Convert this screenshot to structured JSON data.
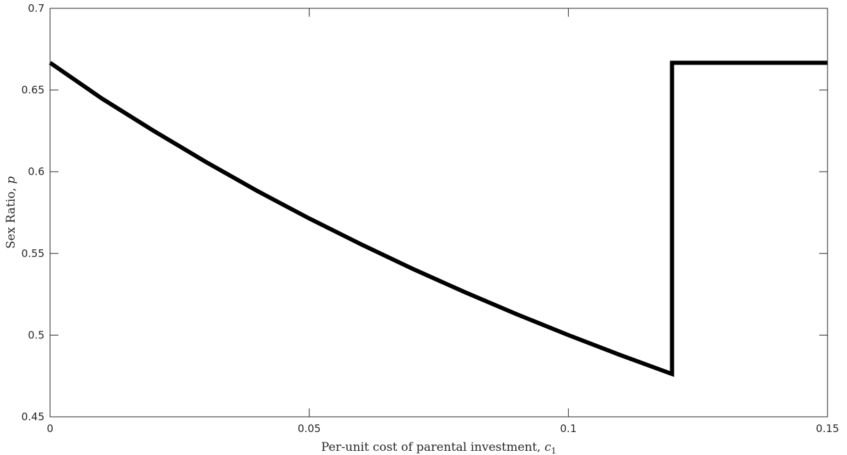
{
  "chart_data": {
    "type": "line",
    "title": "",
    "xlabel": "Per-unit cost of parental investment, ",
    "xlabel_symbol": "c",
    "xlabel_subscript": "1",
    "ylabel": "Sex Ratio, ",
    "ylabel_symbol": "p",
    "xlim": [
      0,
      0.15
    ],
    "ylim": [
      0.45,
      0.7
    ],
    "xticks": [
      0,
      0.05,
      0.1,
      0.15
    ],
    "xtick_labels": [
      "0",
      "0.05",
      "0.1",
      "0.15"
    ],
    "yticks": [
      0.45,
      0.5,
      0.55,
      0.6,
      0.65,
      0.7
    ],
    "ytick_labels": [
      "0.45",
      "0.5",
      "0.55",
      "0.6",
      "0.65",
      "0.7"
    ],
    "grid": false,
    "series": [
      {
        "color": "#000000",
        "x": [
          0,
          0.01,
          0.02,
          0.03,
          0.04,
          0.05,
          0.06,
          0.07,
          0.08,
          0.09,
          0.1,
          0.11,
          0.12,
          0.12,
          0.15
        ],
        "y": [
          0.6667,
          0.6448,
          0.625,
          0.6061,
          0.5882,
          0.5714,
          0.5556,
          0.5405,
          0.5263,
          0.5128,
          0.5,
          0.4878,
          0.4762,
          0.6667,
          0.6667
        ]
      }
    ]
  }
}
